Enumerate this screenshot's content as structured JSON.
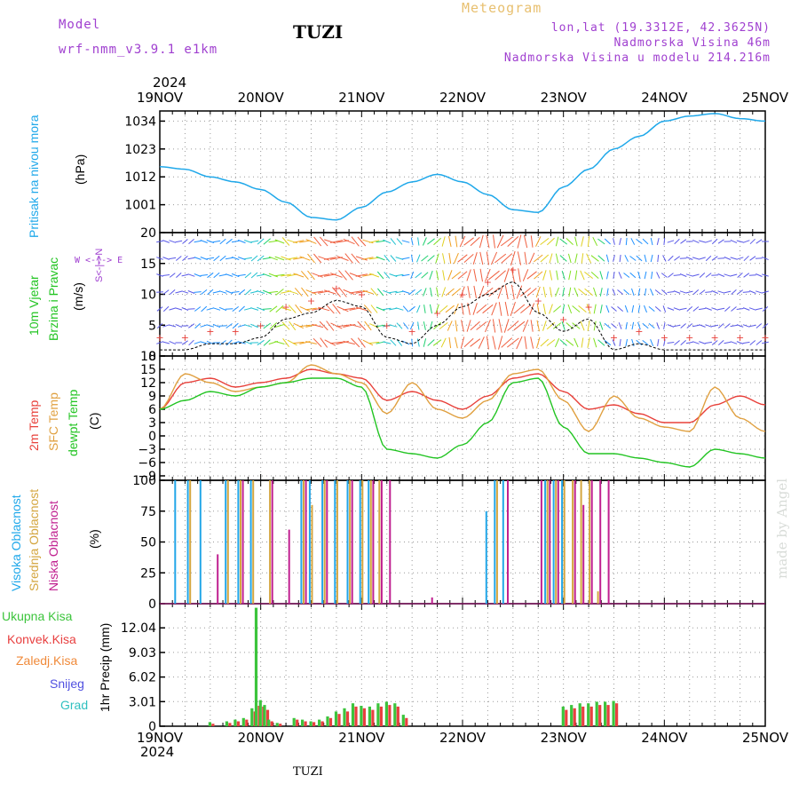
{
  "header": {
    "model_label": "Model",
    "model_name": "wrf-nmm_v3.9.1 e1km",
    "station": "TUZI",
    "meteogram_label": "Meteogram",
    "lonlat": "lon,lat (19.3312E, 42.3625N)",
    "elevation": "Nadmorska Visina 46m",
    "model_elevation": "Nadmorska Visina u modelu 214.216m",
    "year_top": "2024",
    "year_bottom": "2024",
    "footer_station": "TUZI",
    "watermark": "made by Angel"
  },
  "colors": {
    "pressure": "#1fa8ea",
    "temp2m": "#e8403a",
    "sfc": "#e0a040",
    "dewpt": "#22c422",
    "visoka": "#22a6e8",
    "srednja": "#d4a640",
    "niska": "#c02090",
    "ukupna": "#3cc43c",
    "konvek": "#e84040",
    "zaledj": "#f08a3a",
    "snijeg": "#5050e0",
    "grad": "#30c0c0",
    "wind_label": "#22c422",
    "wind_dir_label": "#a040d0"
  },
  "x_ticks": [
    "19NOV",
    "20NOV",
    "21NOV",
    "22NOV",
    "23NOV",
    "24NOV",
    "25NOV"
  ],
  "panels": {
    "pressure": {
      "label1": "Pritisak na nivou mora",
      "unit": "(hPa)",
      "yticks": [
        "1034",
        "1023",
        "1012",
        "1001"
      ]
    },
    "wind": {
      "label1": "10m Vjetar",
      "label2": "Brzina i Pravac",
      "unit": "(m/s)",
      "compass": "W <-|-> E",
      "compass2": "S<-|->N",
      "yticks": [
        "20",
        "15",
        "10",
        "5",
        "0"
      ]
    },
    "temp": {
      "label1": "2m Temp",
      "label2": "SFC Temp",
      "label3": "dewpt Temp",
      "unit": "(C)",
      "yticks": [
        "18",
        "15",
        "12",
        "9",
        "6",
        "3",
        "0",
        "−3",
        "−6",
        "−9"
      ]
    },
    "cloud": {
      "label1": "Visoka Oblacnost",
      "label2": "Srednja Oblacnost",
      "label3": "Niska Oblacnost",
      "unit": "(%)",
      "yticks": [
        "100",
        "75",
        "50",
        "25",
        "0"
      ]
    },
    "precip": {
      "unit": "1hr Precip (mm)",
      "legend": [
        "Ukupna Kisa",
        "Konvek.Kisa",
        "Zaledj.Kisa",
        "Snijeg",
        "Grad"
      ],
      "yticks": [
        "12.04",
        "9.03",
        "6.02",
        "3.01",
        "0"
      ]
    }
  },
  "chart_data": [
    {
      "type": "line",
      "title": "Pritisak na nivou mora",
      "ylabel": "(hPa)",
      "ylim": [
        990,
        1038
      ],
      "x": [
        0,
        6,
        12,
        18,
        24,
        30,
        36,
        42,
        48,
        54,
        60,
        66,
        72,
        78,
        84,
        90,
        96,
        102,
        108,
        114,
        120,
        126,
        132,
        138,
        144
      ],
      "values": [
        1016,
        1015,
        1012,
        1010,
        1007,
        1002,
        996,
        995,
        1000,
        1006,
        1010,
        1013,
        1010,
        1005,
        999,
        998,
        1008,
        1015,
        1023,
        1028,
        1034,
        1036,
        1037,
        1035,
        1034
      ]
    },
    {
      "type": "line",
      "title": "10m Vjetar Brzina i Pravac",
      "ylabel": "(m/s)",
      "ylim": [
        0,
        20
      ],
      "x": [
        0,
        6,
        12,
        18,
        24,
        30,
        36,
        42,
        48,
        54,
        60,
        66,
        72,
        78,
        84,
        90,
        96,
        102,
        108,
        114,
        120,
        126,
        132,
        138,
        144
      ],
      "values": [
        1,
        1,
        2,
        2,
        3,
        6,
        7,
        9,
        8,
        3,
        2,
        5,
        8,
        10,
        12,
        7,
        4,
        6,
        1,
        2,
        1,
        1,
        1,
        1,
        1
      ]
    },
    {
      "type": "line",
      "title": "Temperatura",
      "ylabel": "(C)",
      "ylim": [
        -10,
        18
      ],
      "x": [
        0,
        6,
        12,
        18,
        24,
        30,
        36,
        42,
        48,
        54,
        60,
        66,
        72,
        78,
        84,
        90,
        96,
        102,
        108,
        114,
        120,
        126,
        132,
        138,
        144
      ],
      "series": [
        {
          "name": "2m Temp",
          "values": [
            6,
            12,
            13,
            11,
            12,
            13,
            15,
            14,
            13,
            8,
            10,
            8,
            6,
            9,
            13,
            14,
            10,
            6,
            7,
            5,
            3,
            3,
            7,
            9,
            7
          ]
        },
        {
          "name": "SFC Temp",
          "values": [
            6,
            14,
            12,
            10,
            11,
            12,
            16,
            14,
            12,
            5,
            12,
            6,
            4,
            8,
            14,
            15,
            8,
            1,
            9,
            4,
            2,
            1,
            11,
            4,
            1
          ]
        },
        {
          "name": "dewpt Temp",
          "values": [
            6,
            8,
            10,
            9,
            11,
            12,
            13,
            13,
            11,
            -3,
            -4,
            -5,
            -2,
            3,
            12,
            13,
            2,
            -4,
            -4,
            -5,
            -6,
            -7,
            -3,
            -4,
            -5
          ]
        }
      ]
    },
    {
      "type": "bar",
      "title": "Oblacnost",
      "ylabel": "(%)",
      "ylim": [
        0,
        100
      ],
      "x": [
        4,
        7,
        10,
        13,
        16,
        19,
        22,
        26,
        30,
        34,
        36,
        39,
        42,
        45,
        48,
        50,
        52,
        54,
        56,
        60,
        64,
        70,
        78,
        80,
        82,
        90,
        92,
        94,
        96,
        98,
        100,
        102,
        104,
        106
      ],
      "series": [
        {
          "name": "Visoka Oblacnost",
          "values": [
            100,
            100,
            100,
            0,
            100,
            100,
            100,
            0,
            0,
            100,
            100,
            100,
            100,
            100,
            100,
            100,
            0,
            0,
            0,
            0,
            0,
            0,
            75,
            100,
            100,
            0,
            100,
            100,
            100,
            0,
            0,
            0,
            0,
            0
          ]
        },
        {
          "name": "Srednja Oblacnost",
          "values": [
            0,
            100,
            0,
            0,
            100,
            100,
            100,
            100,
            0,
            100,
            80,
            100,
            100,
            100,
            100,
            100,
            100,
            0,
            0,
            0,
            0,
            0,
            0,
            100,
            0,
            0,
            100,
            100,
            100,
            100,
            100,
            100,
            10,
            0
          ]
        },
        {
          "name": "Niska Oblacnost",
          "values": [
            0,
            0,
            0,
            40,
            0,
            100,
            0,
            100,
            60,
            100,
            0,
            100,
            0,
            100,
            0,
            100,
            100,
            100,
            0,
            0,
            5,
            0,
            0,
            0,
            100,
            100,
            100,
            100,
            0,
            100,
            80,
            100,
            100,
            100
          ]
        }
      ]
    },
    {
      "type": "bar",
      "title": "1hr Precip",
      "ylabel": "1hr Precip (mm)",
      "ylim": [
        0,
        15
      ],
      "x": [
        12,
        16,
        18,
        20,
        22,
        23,
        24,
        25,
        26,
        28,
        32,
        34,
        36,
        38,
        40,
        42,
        44,
        46,
        48,
        50,
        52,
        54,
        56,
        58,
        96,
        98,
        100,
        102,
        104,
        106,
        108
      ],
      "series": [
        {
          "name": "Ukupna Kisa",
          "values": [
            0.5,
            0.6,
            0.8,
            1.0,
            2.2,
            14.5,
            3.2,
            2.6,
            0.8,
            0.4,
            1.0,
            0.8,
            0.6,
            0.8,
            1.2,
            1.8,
            2.2,
            2.8,
            2.5,
            2.4,
            2.8,
            3.0,
            2.8,
            1.4,
            2.4,
            2.6,
            2.8,
            2.8,
            3.0,
            3.0,
            3.1
          ]
        },
        {
          "name": "Konvek.Kisa",
          "values": [
            0.3,
            0.4,
            0.6,
            0.8,
            1.8,
            2.5,
            2.4,
            2.0,
            0.6,
            0.3,
            0.8,
            0.6,
            0.5,
            0.6,
            1.0,
            1.5,
            1.8,
            2.4,
            2.2,
            2.0,
            2.4,
            2.6,
            2.4,
            1.0,
            2.0,
            2.2,
            2.4,
            2.4,
            2.6,
            2.6,
            2.8
          ]
        }
      ]
    }
  ]
}
